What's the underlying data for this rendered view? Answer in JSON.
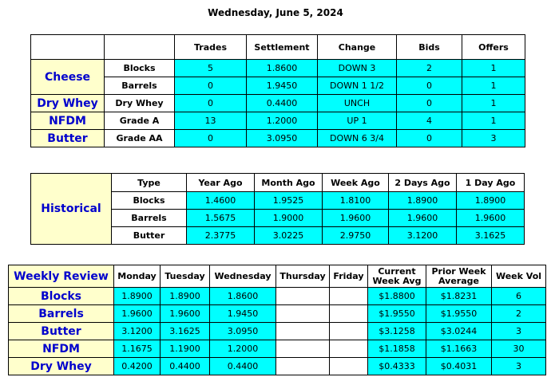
{
  "title": "Wednesday, June 5, 2024",
  "daily": {
    "header": [
      "Trades",
      "Settlement",
      "Change",
      "Bids",
      "Offers"
    ],
    "rows": [
      {
        "product": "Cheese",
        "grade": "Blocks",
        "cells": [
          "5",
          "1.8600",
          "DOWN 3",
          "2",
          "1"
        ]
      },
      {
        "grade": "Barrels",
        "cells": [
          "0",
          "1.9450",
          "DOWN 1 1/2",
          "0",
          "1"
        ]
      },
      {
        "product": "Dry Whey",
        "grade": "Dry Whey",
        "cells": [
          "0",
          "0.4400",
          "UNCH",
          "0",
          "1"
        ]
      },
      {
        "product": "NFDM",
        "grade": "Grade A",
        "cells": [
          "13",
          "1.2000",
          "UP 1",
          "4",
          "1"
        ]
      },
      {
        "product": "Butter",
        "grade": "Grade AA",
        "cells": [
          "0",
          "3.0950",
          "DOWN 6 3/4",
          "0",
          "3"
        ]
      }
    ]
  },
  "historical": {
    "label": "Historical",
    "header": [
      "Type",
      "Year Ago",
      "Month Ago",
      "Week Ago",
      "2 Days Ago",
      "1 Day Ago"
    ],
    "rows": [
      [
        "Blocks",
        "1.4600",
        "1.9525",
        "1.8100",
        "1.8900",
        "1.8900"
      ],
      [
        "Barrels",
        "1.5675",
        "1.9000",
        "1.9600",
        "1.9600",
        "1.9600"
      ],
      [
        "Butter",
        "2.3775",
        "3.0225",
        "2.9750",
        "3.1200",
        "3.1625"
      ]
    ]
  },
  "weekly": {
    "header": [
      "Weekly Review",
      "Monday",
      "Tuesday",
      "Wednesday",
      "Thursday",
      "Friday",
      "Current Week Avg",
      "Prior Week Average",
      "Week Vol"
    ],
    "rows": [
      [
        "Blocks",
        "1.8900",
        "1.8900",
        "1.8600",
        null,
        null,
        "$1.8800",
        "$1.8231",
        "6"
      ],
      [
        "Barrels",
        "1.9600",
        "1.9600",
        "1.9450",
        null,
        null,
        "$1.9550",
        "$1.9550",
        "2"
      ],
      [
        "Butter",
        "3.1200",
        "3.1625",
        "3.0950",
        null,
        null,
        "$3.1258",
        "$3.0244",
        "3"
      ],
      [
        "NFDM",
        "1.1675",
        "1.1900",
        "1.2000",
        null,
        null,
        "$1.1858",
        "$1.1663",
        "30"
      ],
      [
        "Dry Whey",
        "0.4200",
        "0.4400",
        "0.4400",
        null,
        null,
        "$0.4333",
        "$0.4031",
        "3"
      ]
    ]
  }
}
